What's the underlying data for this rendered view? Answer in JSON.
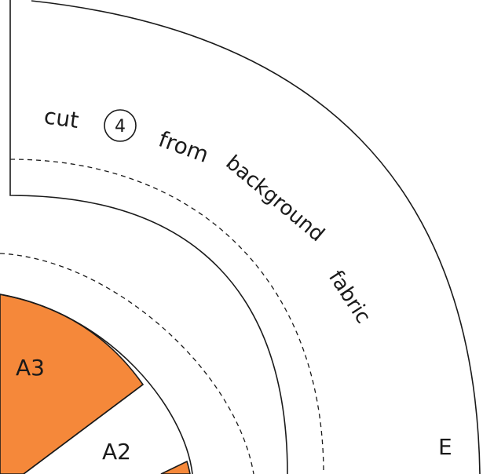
{
  "pattern": {
    "instruction_prefix": "cut",
    "quantity": "4",
    "instruction_words": [
      "from",
      "background",
      "fabric"
    ],
    "piece_label": "E",
    "segment_labels": [
      "A3",
      "A2"
    ]
  },
  "colors": {
    "fill_accent": "#f5883a",
    "line": "#1a1a1a",
    "background": "#ffffff"
  }
}
